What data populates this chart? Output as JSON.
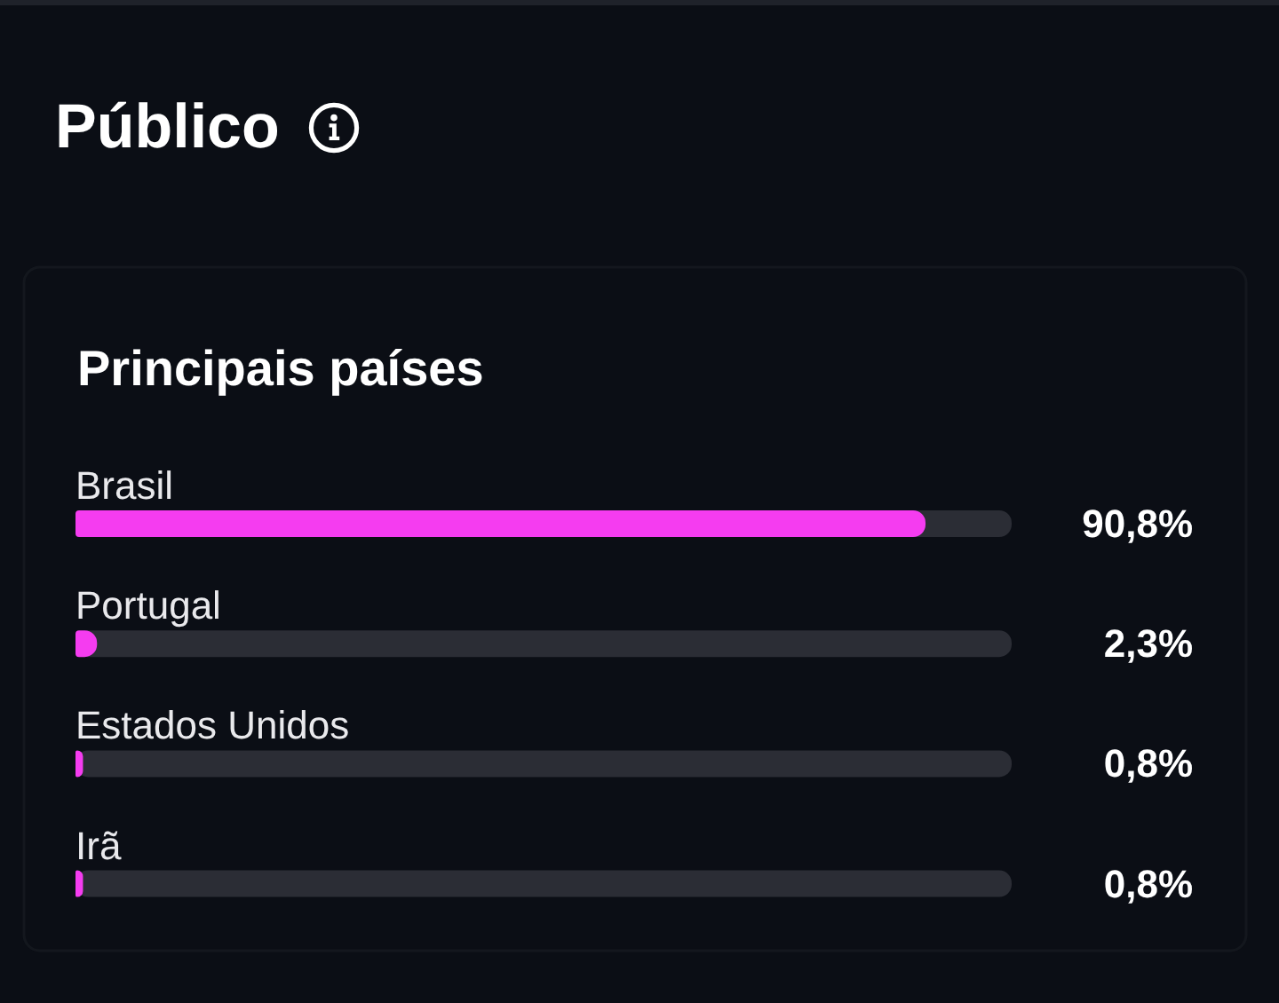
{
  "chart_data": {
    "type": "bar",
    "orientation": "horizontal",
    "title": "Público",
    "subtitle": "Principais países",
    "categories": [
      "Brasil",
      "Portugal",
      "Estados Unidos",
      "Irã"
    ],
    "values": [
      90.8,
      2.3,
      0.8,
      0.8
    ],
    "color": "#f53cf0",
    "value_labels": [
      "90,8%",
      "2,3%",
      "0,8%",
      "0,8%"
    ],
    "xlim": [
      0,
      100
    ],
    "tick_labels": false
  }
}
